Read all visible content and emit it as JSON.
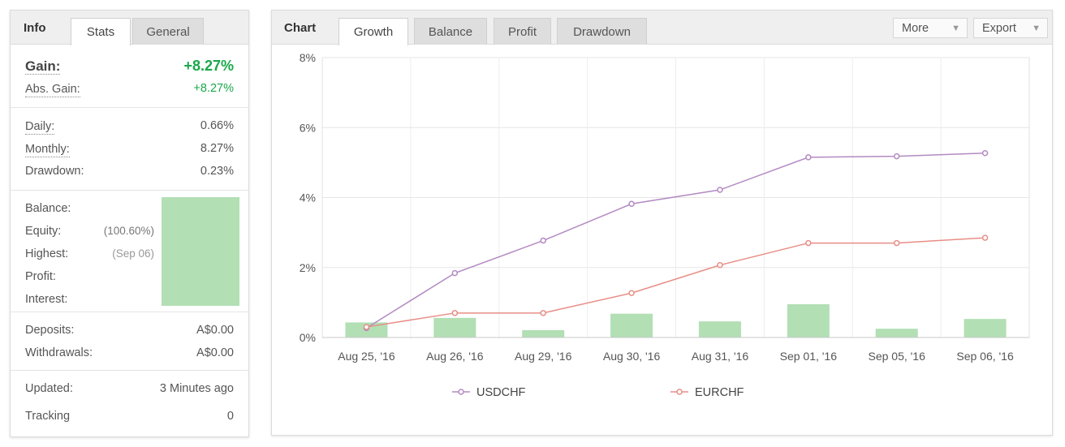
{
  "info_panel": {
    "tabs": [
      {
        "label": "Info",
        "active": false
      },
      {
        "label": "Stats",
        "active": true
      },
      {
        "label": "General",
        "active": false
      }
    ],
    "gain": {
      "label": "Gain:",
      "value": "+8.27%"
    },
    "abs_gain": {
      "label": "Abs. Gain:",
      "value": "+8.27%"
    },
    "daily": {
      "label": "Daily:",
      "value": "0.66%"
    },
    "monthly": {
      "label": "Monthly:",
      "value": "8.27%"
    },
    "drawdown": {
      "label": "Drawdown:",
      "value": "0.23%"
    },
    "balance": {
      "label": "Balance:"
    },
    "equity": {
      "label": "Equity:",
      "note": "(100.60%)"
    },
    "highest": {
      "label": "Highest:",
      "note": "(Sep 06)"
    },
    "profit": {
      "label": "Profit:"
    },
    "interest": {
      "label": "Interest:"
    },
    "deposits": {
      "label": "Deposits:",
      "value": "A$0.00"
    },
    "withdrawals": {
      "label": "Withdrawals:",
      "value": "A$0.00"
    },
    "updated": {
      "label": "Updated:",
      "value": "3 Minutes ago"
    },
    "tracking": {
      "label": "Tracking",
      "value": "0"
    },
    "colors": {
      "gain": "#1aa84a",
      "hidden_block": "#b2dfb4"
    }
  },
  "chart_panel": {
    "tabs": [
      {
        "label": "Chart",
        "active": false
      },
      {
        "label": "Growth",
        "active": true
      },
      {
        "label": "Balance",
        "active": false
      },
      {
        "label": "Profit",
        "active": false
      },
      {
        "label": "Drawdown",
        "active": false
      }
    ],
    "more_label": "More",
    "export_label": "Export"
  },
  "chart_data": {
    "type": "line",
    "categories": [
      "Aug 25, '16",
      "Aug 26, '16",
      "Aug 29, '16",
      "Aug 30, '16",
      "Aug 31, '16",
      "Sep 01, '16",
      "Sep 05, '16",
      "Sep 06, '16"
    ],
    "series": [
      {
        "name": "USDCHF",
        "type": "line",
        "color": "#b38ac2",
        "values": [
          0.27,
          1.84,
          2.77,
          3.82,
          4.22,
          5.15,
          5.18,
          5.27
        ]
      },
      {
        "name": "EURCHF",
        "type": "line",
        "color": "#e88e86",
        "values": [
          0.3,
          0.7,
          0.7,
          1.27,
          2.07,
          2.7,
          2.7,
          2.85
        ]
      },
      {
        "type": "bar",
        "color": "#b2dfb4",
        "values": [
          0.43,
          0.56,
          0.21,
          0.68,
          0.46,
          0.95,
          0.25,
          0.53
        ]
      }
    ],
    "ylim": [
      0,
      8
    ],
    "y_ticks": [
      0,
      2,
      4,
      6,
      8
    ],
    "y_tick_labels": [
      "0%",
      "2%",
      "4%",
      "6%",
      "8%"
    ],
    "grid": true,
    "legend_position": "bottom"
  }
}
